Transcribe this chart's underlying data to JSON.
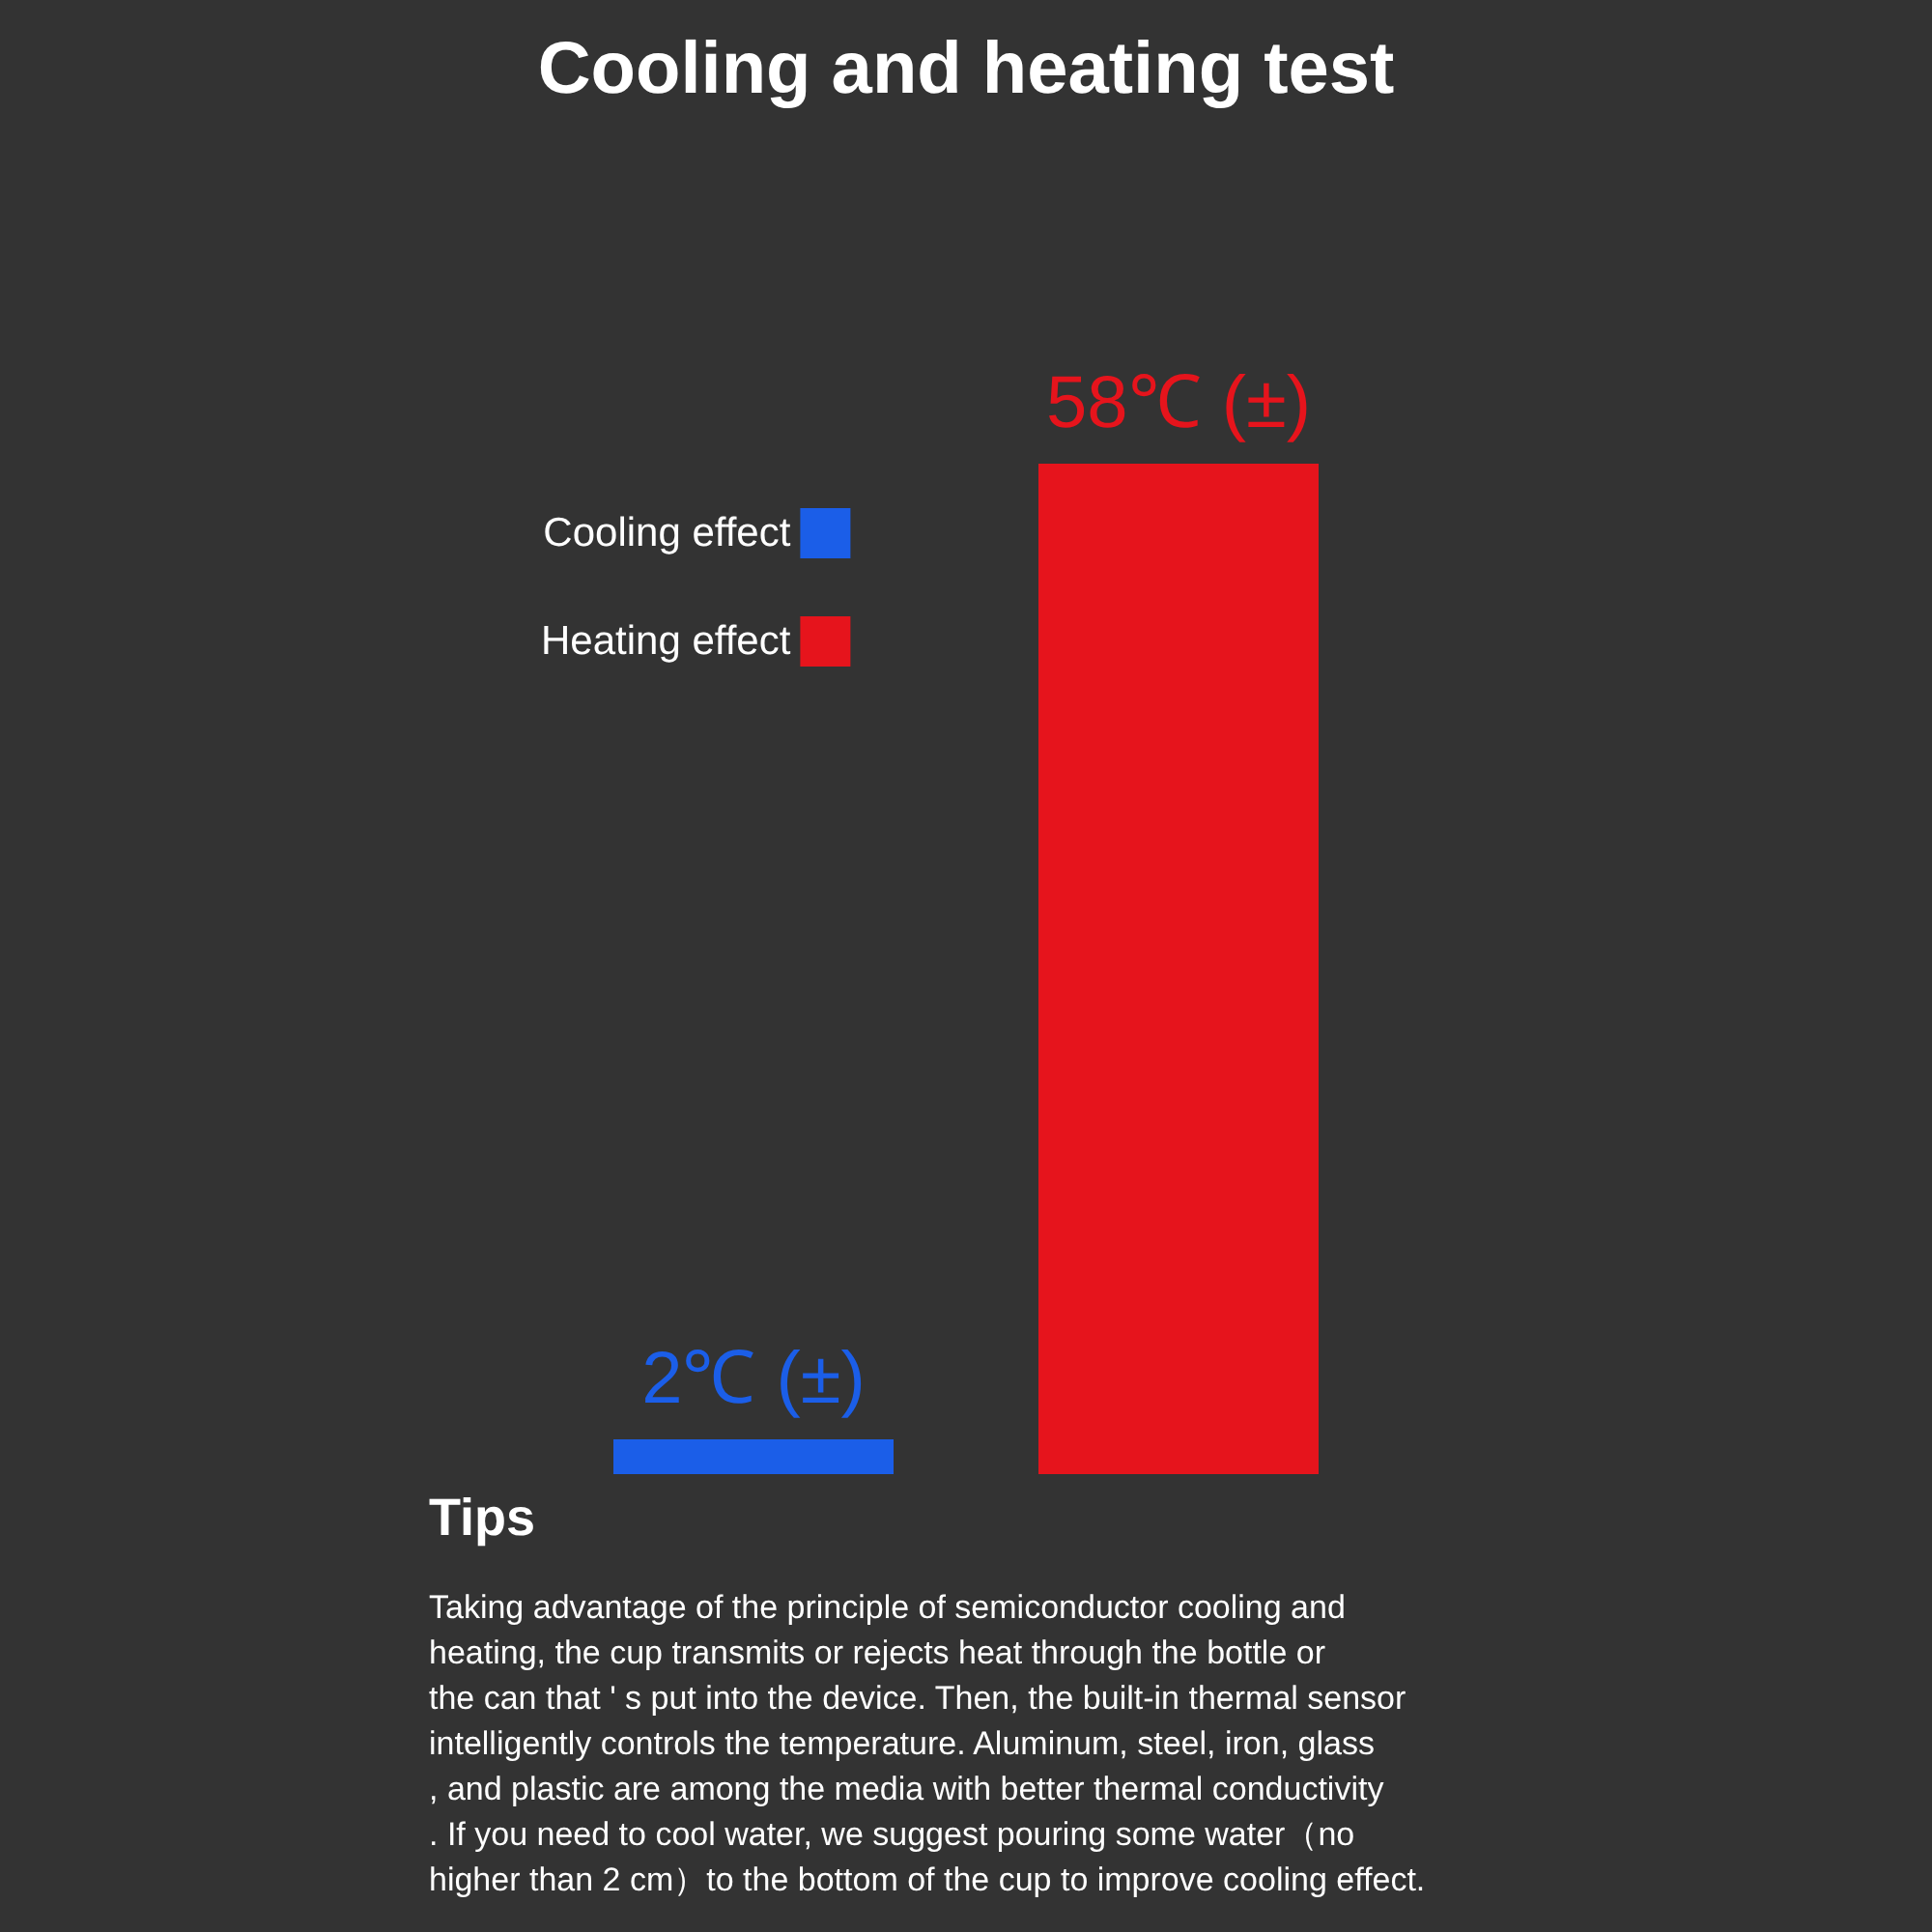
{
  "chart_data": {
    "type": "bar",
    "title": "Cooling and heating test",
    "categories": [
      null,
      null
    ],
    "stacked": true,
    "series": [
      {
        "name": "Cooling effect",
        "color": "#1b5ee8",
        "values": [
          2,
          null
        ],
        "value_labels": [
          "2℃ (±)",
          null
        ]
      },
      {
        "name": "Heating effect",
        "color": "#e6141c",
        "values": [
          null,
          58
        ],
        "value_labels": [
          null,
          "58℃ (±)"
        ]
      }
    ],
    "legend": "top left",
    "annotations": [
      "Tips",
      "Taking advantage of the principle of semiconductor cooling and\nheating, the cup transmits or rejects heat through the bottle or\nthe can that ' s put into the device. Then, the built-in thermal sensor\nintelligently controls the temperature. Aluminum, steel, iron, glass\n, and plastic are among the media with better thermal conductivity\n. If you need to cool water, we suggest pouring some water（no\nhigher than 2 cm）to the bottom of the cup to improve cooling effect."
    ]
  }
}
